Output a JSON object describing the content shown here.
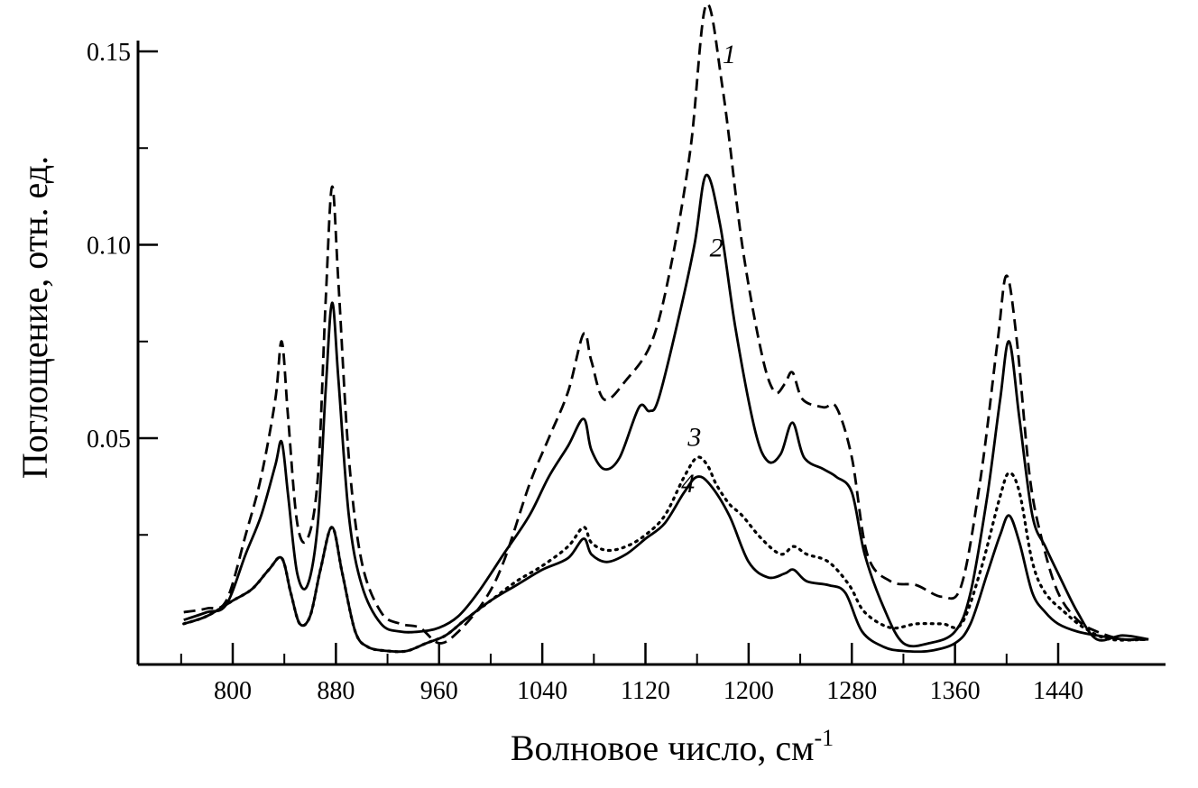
{
  "chart_data": {
    "type": "line",
    "title": "",
    "xlabel": "Волновое число, см",
    "xlabel_sup": "-1",
    "ylabel": "Поглощение, отн. ед.",
    "xlim": [
      740,
      1520
    ],
    "ylim": [
      -0.01,
      0.16
    ],
    "x_ticks": [
      800,
      880,
      960,
      1040,
      1120,
      1200,
      1280,
      1360,
      1440
    ],
    "y_ticks": [
      0.05,
      0.1,
      0.15
    ],
    "x_tick_labels": [
      "800",
      "880",
      "960",
      "1040",
      "1120",
      "1200",
      "1280",
      "1360",
      "1440"
    ],
    "y_tick_labels": [
      "0.05",
      "0.10",
      "0.15"
    ],
    "grid": false,
    "legend": "inline numeric labels",
    "series": [
      {
        "label": "1",
        "style": "dashed",
        "color": "#000000",
        "label_pos": {
          "x": 1185,
          "y": 0.147
        },
        "points": [
          [
            762,
            0.005
          ],
          [
            780,
            0.006
          ],
          [
            795,
            0.008
          ],
          [
            810,
            0.025
          ],
          [
            822,
            0.04
          ],
          [
            833,
            0.06
          ],
          [
            838,
            0.075
          ],
          [
            843,
            0.055
          ],
          [
            850,
            0.028
          ],
          [
            858,
            0.024
          ],
          [
            866,
            0.04
          ],
          [
            872,
            0.085
          ],
          [
            877,
            0.115
          ],
          [
            882,
            0.09
          ],
          [
            890,
            0.045
          ],
          [
            900,
            0.018
          ],
          [
            915,
            0.005
          ],
          [
            930,
            0.002
          ],
          [
            945,
            0.001
          ],
          [
            960,
            -0.003
          ],
          [
            975,
            0.0
          ],
          [
            995,
            0.008
          ],
          [
            1010,
            0.018
          ],
          [
            1030,
            0.038
          ],
          [
            1045,
            0.05
          ],
          [
            1060,
            0.062
          ],
          [
            1072,
            0.077
          ],
          [
            1078,
            0.07
          ],
          [
            1088,
            0.06
          ],
          [
            1105,
            0.065
          ],
          [
            1125,
            0.075
          ],
          [
            1140,
            0.095
          ],
          [
            1155,
            0.125
          ],
          [
            1167,
            0.162
          ],
          [
            1180,
            0.14
          ],
          [
            1195,
            0.1
          ],
          [
            1210,
            0.072
          ],
          [
            1220,
            0.062
          ],
          [
            1228,
            0.064
          ],
          [
            1234,
            0.067
          ],
          [
            1242,
            0.06
          ],
          [
            1258,
            0.058
          ],
          [
            1268,
            0.058
          ],
          [
            1280,
            0.045
          ],
          [
            1292,
            0.02
          ],
          [
            1310,
            0.013
          ],
          [
            1330,
            0.012
          ],
          [
            1350,
            0.009
          ],
          [
            1365,
            0.012
          ],
          [
            1380,
            0.04
          ],
          [
            1393,
            0.075
          ],
          [
            1400,
            0.092
          ],
          [
            1408,
            0.075
          ],
          [
            1418,
            0.04
          ],
          [
            1428,
            0.023
          ],
          [
            1440,
            0.01
          ],
          [
            1455,
            0.003
          ],
          [
            1470,
            0.0
          ],
          [
            1490,
            -0.002
          ],
          [
            1510,
            -0.002
          ]
        ]
      },
      {
        "label": "2",
        "style": "solid",
        "color": "#000000",
        "label_pos": {
          "x": 1175,
          "y": 0.097
        },
        "points": [
          [
            762,
            0.003
          ],
          [
            780,
            0.005
          ],
          [
            795,
            0.007
          ],
          [
            810,
            0.02
          ],
          [
            822,
            0.03
          ],
          [
            833,
            0.043
          ],
          [
            838,
            0.049
          ],
          [
            843,
            0.035
          ],
          [
            850,
            0.015
          ],
          [
            858,
            0.012
          ],
          [
            866,
            0.028
          ],
          [
            872,
            0.062
          ],
          [
            877,
            0.085
          ],
          [
            882,
            0.065
          ],
          [
            890,
            0.03
          ],
          [
            900,
            0.012
          ],
          [
            915,
            0.002
          ],
          [
            930,
            0.0
          ],
          [
            945,
            0.0
          ],
          [
            960,
            0.001
          ],
          [
            975,
            0.004
          ],
          [
            990,
            0.01
          ],
          [
            1010,
            0.02
          ],
          [
            1030,
            0.03
          ],
          [
            1045,
            0.04
          ],
          [
            1060,
            0.048
          ],
          [
            1072,
            0.055
          ],
          [
            1078,
            0.047
          ],
          [
            1088,
            0.042
          ],
          [
            1100,
            0.045
          ],
          [
            1115,
            0.058
          ],
          [
            1123,
            0.057
          ],
          [
            1130,
            0.06
          ],
          [
            1145,
            0.08
          ],
          [
            1158,
            0.1
          ],
          [
            1167,
            0.118
          ],
          [
            1178,
            0.105
          ],
          [
            1190,
            0.078
          ],
          [
            1205,
            0.052
          ],
          [
            1215,
            0.044
          ],
          [
            1225,
            0.046
          ],
          [
            1234,
            0.054
          ],
          [
            1243,
            0.045
          ],
          [
            1258,
            0.042
          ],
          [
            1268,
            0.04
          ],
          [
            1280,
            0.036
          ],
          [
            1290,
            0.02
          ],
          [
            1305,
            0.006
          ],
          [
            1320,
            -0.003
          ],
          [
            1340,
            -0.003
          ],
          [
            1360,
            0.0
          ],
          [
            1372,
            0.01
          ],
          [
            1385,
            0.035
          ],
          [
            1395,
            0.06
          ],
          [
            1402,
            0.075
          ],
          [
            1410,
            0.055
          ],
          [
            1420,
            0.03
          ],
          [
            1430,
            0.022
          ],
          [
            1440,
            0.015
          ],
          [
            1455,
            0.005
          ],
          [
            1470,
            -0.002
          ],
          [
            1490,
            -0.001
          ],
          [
            1510,
            -0.002
          ]
        ]
      },
      {
        "label": "3",
        "style": "dotted",
        "color": "#000000",
        "label_pos": {
          "x": 1158,
          "y": 0.048
        },
        "points": [
          [
            762,
            0.002
          ],
          [
            780,
            0.004
          ],
          [
            800,
            0.008
          ],
          [
            815,
            0.011
          ],
          [
            828,
            0.016
          ],
          [
            838,
            0.019
          ],
          [
            845,
            0.01
          ],
          [
            852,
            0.002
          ],
          [
            860,
            0.004
          ],
          [
            868,
            0.016
          ],
          [
            877,
            0.027
          ],
          [
            885,
            0.015
          ],
          [
            895,
            0.0
          ],
          [
            905,
            -0.004
          ],
          [
            920,
            -0.005
          ],
          [
            935,
            -0.005
          ],
          [
            950,
            -0.003
          ],
          [
            965,
            -0.001
          ],
          [
            980,
            0.003
          ],
          [
            1000,
            0.008
          ],
          [
            1020,
            0.013
          ],
          [
            1040,
            0.017
          ],
          [
            1060,
            0.022
          ],
          [
            1072,
            0.027
          ],
          [
            1078,
            0.023
          ],
          [
            1090,
            0.021
          ],
          [
            1105,
            0.022
          ],
          [
            1120,
            0.025
          ],
          [
            1135,
            0.03
          ],
          [
            1150,
            0.04
          ],
          [
            1160,
            0.045
          ],
          [
            1168,
            0.043
          ],
          [
            1175,
            0.038
          ],
          [
            1185,
            0.033
          ],
          [
            1195,
            0.03
          ],
          [
            1210,
            0.024
          ],
          [
            1225,
            0.02
          ],
          [
            1235,
            0.022
          ],
          [
            1245,
            0.02
          ],
          [
            1262,
            0.018
          ],
          [
            1278,
            0.012
          ],
          [
            1290,
            0.005
          ],
          [
            1310,
            0.001
          ],
          [
            1330,
            0.002
          ],
          [
            1350,
            0.002
          ],
          [
            1365,
            0.002
          ],
          [
            1380,
            0.016
          ],
          [
            1395,
            0.035
          ],
          [
            1402,
            0.041
          ],
          [
            1410,
            0.036
          ],
          [
            1420,
            0.018
          ],
          [
            1430,
            0.01
          ],
          [
            1445,
            0.005
          ],
          [
            1460,
            0.001
          ],
          [
            1480,
            -0.002
          ],
          [
            1510,
            -0.002
          ]
        ]
      },
      {
        "label": "4",
        "style": "solid",
        "color": "#000000",
        "label_pos": {
          "x": 1153,
          "y": 0.036
        },
        "points": [
          [
            762,
            0.002
          ],
          [
            780,
            0.004
          ],
          [
            800,
            0.008
          ],
          [
            815,
            0.011
          ],
          [
            828,
            0.016
          ],
          [
            838,
            0.019
          ],
          [
            845,
            0.01
          ],
          [
            852,
            0.002
          ],
          [
            860,
            0.004
          ],
          [
            868,
            0.016
          ],
          [
            877,
            0.027
          ],
          [
            885,
            0.015
          ],
          [
            895,
            0.0
          ],
          [
            905,
            -0.004
          ],
          [
            920,
            -0.005
          ],
          [
            935,
            -0.005
          ],
          [
            950,
            -0.003
          ],
          [
            965,
            -0.001
          ],
          [
            980,
            0.003
          ],
          [
            1000,
            0.008
          ],
          [
            1020,
            0.012
          ],
          [
            1040,
            0.016
          ],
          [
            1060,
            0.019
          ],
          [
            1072,
            0.024
          ],
          [
            1078,
            0.02
          ],
          [
            1090,
            0.018
          ],
          [
            1105,
            0.02
          ],
          [
            1120,
            0.024
          ],
          [
            1135,
            0.028
          ],
          [
            1150,
            0.036
          ],
          [
            1160,
            0.04
          ],
          [
            1170,
            0.038
          ],
          [
            1185,
            0.03
          ],
          [
            1200,
            0.018
          ],
          [
            1215,
            0.014
          ],
          [
            1228,
            0.015
          ],
          [
            1235,
            0.016
          ],
          [
            1245,
            0.013
          ],
          [
            1262,
            0.012
          ],
          [
            1275,
            0.01
          ],
          [
            1288,
            0.0
          ],
          [
            1305,
            -0.004
          ],
          [
            1320,
            -0.005
          ],
          [
            1340,
            -0.005
          ],
          [
            1360,
            -0.003
          ],
          [
            1372,
            0.002
          ],
          [
            1385,
            0.015
          ],
          [
            1395,
            0.025
          ],
          [
            1402,
            0.03
          ],
          [
            1410,
            0.023
          ],
          [
            1420,
            0.01
          ],
          [
            1430,
            0.005
          ],
          [
            1440,
            0.002
          ],
          [
            1455,
            0.0
          ],
          [
            1470,
            -0.001
          ],
          [
            1490,
            -0.002
          ],
          [
            1510,
            -0.002
          ]
        ]
      }
    ]
  }
}
